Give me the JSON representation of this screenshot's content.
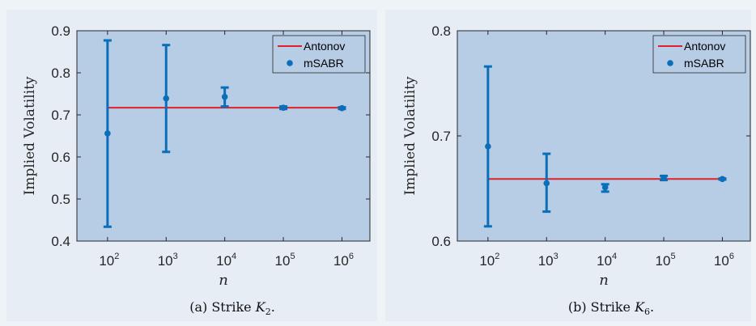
{
  "chart_data": [
    {
      "type": "scatter",
      "caption": "(a) Strike K2.",
      "caption_prefix": "(a) Strike ",
      "caption_symbol": "K",
      "caption_sub": "2",
      "xscale": "log",
      "xlabel": "n",
      "ylabel": "Implied Volatility",
      "xlim": [
        30,
        3000000
      ],
      "ylim": [
        0.4,
        0.9
      ],
      "x_ticks": [
        100,
        1000,
        10000,
        100000,
        1000000
      ],
      "x_tick_labels": [
        {
          "base": "10",
          "exp": "2"
        },
        {
          "base": "10",
          "exp": "3"
        },
        {
          "base": "10",
          "exp": "4"
        },
        {
          "base": "10",
          "exp": "5"
        },
        {
          "base": "10",
          "exp": "6"
        }
      ],
      "y_ticks": [
        0.4,
        0.5,
        0.6,
        0.7,
        0.8,
        0.9
      ],
      "y_tick_labels": [
        "0.4",
        "0.5",
        "0.6",
        "0.7",
        "0.8",
        "0.9"
      ],
      "grid": false,
      "legend_position": "top-right",
      "series": [
        {
          "name": "Antonov",
          "kind": "line",
          "color": "#e0202a",
          "x": [
            100,
            1000000
          ],
          "y": [
            0.717,
            0.717
          ]
        },
        {
          "name": "mSABR",
          "kind": "errorbar",
          "color": "#0a6eb8",
          "x": [
            100,
            1000,
            10000,
            100000,
            1000000
          ],
          "y": [
            0.656,
            0.739,
            0.743,
            0.717,
            0.716
          ],
          "lower": [
            0.434,
            0.612,
            0.72,
            0.714,
            0.714
          ],
          "upper": [
            0.877,
            0.866,
            0.765,
            0.72,
            0.718
          ]
        }
      ]
    },
    {
      "type": "scatter",
      "caption": "(b) Strike K6.",
      "caption_prefix": "(b) Strike ",
      "caption_symbol": "K",
      "caption_sub": "6",
      "xscale": "log",
      "xlabel": "n",
      "ylabel": "Implied Volatility",
      "xlim": [
        30,
        3000000
      ],
      "ylim": [
        0.6,
        0.8
      ],
      "x_ticks": [
        100,
        1000,
        10000,
        100000,
        1000000
      ],
      "x_tick_labels": [
        {
          "base": "10",
          "exp": "2"
        },
        {
          "base": "10",
          "exp": "3"
        },
        {
          "base": "10",
          "exp": "4"
        },
        {
          "base": "10",
          "exp": "5"
        },
        {
          "base": "10",
          "exp": "6"
        }
      ],
      "y_ticks": [
        0.6,
        0.7,
        0.8
      ],
      "y_tick_labels": [
        "0.6",
        "0.7",
        "0.8"
      ],
      "grid": false,
      "legend_position": "top-right",
      "series": [
        {
          "name": "Antonov",
          "kind": "line",
          "color": "#e0202a",
          "x": [
            100,
            1000000
          ],
          "y": [
            0.659,
            0.659
          ]
        },
        {
          "name": "mSABR",
          "kind": "errorbar",
          "color": "#0a6eb8",
          "x": [
            100,
            1000,
            10000,
            100000,
            1000000
          ],
          "y": [
            0.69,
            0.655,
            0.651,
            0.66,
            0.659
          ],
          "lower": [
            0.614,
            0.628,
            0.647,
            0.658,
            0.6585
          ],
          "upper": [
            0.766,
            0.683,
            0.654,
            0.662,
            0.6595
          ]
        }
      ]
    }
  ]
}
